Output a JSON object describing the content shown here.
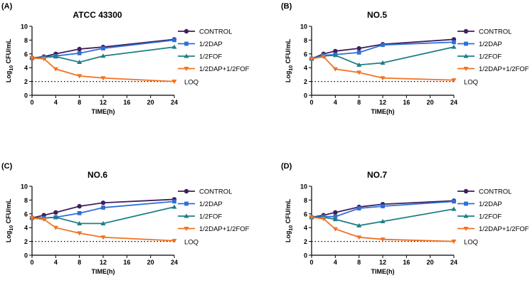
{
  "chart_data": [
    {
      "panel_label": "(A)",
      "type": "line",
      "title": "ATCC 43300",
      "xlabel": "TIME(h)",
      "ylabel_prefix": "Log",
      "ylabel_sub": "10",
      "ylabel_suffix": " CFU/mL",
      "xlim": [
        0,
        24
      ],
      "ylim": [
        0,
        10
      ],
      "xticks": [
        0,
        4,
        8,
        12,
        16,
        20,
        24
      ],
      "yticks": [
        0,
        2,
        4,
        6,
        8,
        10
      ],
      "x": [
        0,
        2,
        4,
        8,
        12,
        24
      ],
      "loq": {
        "value": 2,
        "label": "LOQ"
      },
      "series": [
        {
          "name": "CONTROL",
          "color": "#3f1f5c",
          "marker": "circle",
          "values": [
            5.4,
            5.6,
            6.0,
            6.7,
            7.0,
            8.1
          ]
        },
        {
          "name": "1/2DAP",
          "color": "#2f6ed8",
          "marker": "square",
          "values": [
            5.4,
            5.5,
            5.7,
            6.1,
            6.8,
            8.0
          ]
        },
        {
          "name": "1/2FOF",
          "color": "#1e7f86",
          "marker": "triangle-up",
          "values": [
            5.4,
            5.5,
            5.6,
            4.8,
            5.7,
            7.0
          ]
        },
        {
          "name": "1/2DAP+1/2FOF",
          "color": "#f07224",
          "marker": "triangle-down",
          "values": [
            5.4,
            5.3,
            3.8,
            2.8,
            2.5,
            2.0
          ]
        }
      ]
    },
    {
      "panel_label": "(B)",
      "type": "line",
      "title": "NO.5",
      "xlabel": "TIME(h)",
      "ylabel_prefix": "Log",
      "ylabel_sub": "10",
      "ylabel_suffix": " CFU/mL",
      "xlim": [
        0,
        24
      ],
      "ylim": [
        0,
        10
      ],
      "xticks": [
        0,
        4,
        8,
        12,
        16,
        20,
        24
      ],
      "yticks": [
        0,
        2,
        4,
        6,
        8,
        10
      ],
      "x": [
        0,
        2,
        4,
        8,
        12,
        24
      ],
      "loq": {
        "value": 2,
        "label": "LOQ"
      },
      "series": [
        {
          "name": "CONTROL",
          "color": "#3f1f5c",
          "marker": "circle",
          "values": [
            5.3,
            6.0,
            6.4,
            6.8,
            7.4,
            8.1
          ]
        },
        {
          "name": "1/2DAP",
          "color": "#2f6ed8",
          "marker": "square",
          "values": [
            5.3,
            5.8,
            5.9,
            6.2,
            7.3,
            7.7
          ]
        },
        {
          "name": "1/2FOF",
          "color": "#1e7f86",
          "marker": "triangle-up",
          "values": [
            5.3,
            5.7,
            5.8,
            4.4,
            4.7,
            7.0
          ]
        },
        {
          "name": "1/2DAP+1/2FOF",
          "color": "#f07224",
          "marker": "triangle-down",
          "values": [
            5.3,
            5.6,
            3.8,
            3.3,
            2.5,
            2.2
          ]
        }
      ]
    },
    {
      "panel_label": "(C)",
      "type": "line",
      "title": "NO.6",
      "xlabel": "TIME(h)",
      "ylabel_prefix": "Log",
      "ylabel_sub": "10",
      "ylabel_suffix": " CFU/mL",
      "xlim": [
        0,
        24
      ],
      "ylim": [
        0,
        10
      ],
      "xticks": [
        0,
        4,
        8,
        12,
        16,
        20,
        24
      ],
      "yticks": [
        0,
        2,
        4,
        6,
        8,
        10
      ],
      "x": [
        0,
        2,
        4,
        8,
        12,
        24
      ],
      "loq": {
        "value": 2,
        "label": "LOQ"
      },
      "series": [
        {
          "name": "CONTROL",
          "color": "#3f1f5c",
          "marker": "circle",
          "values": [
            5.4,
            5.8,
            6.2,
            7.1,
            7.6,
            8.1
          ]
        },
        {
          "name": "1/2DAP",
          "color": "#2f6ed8",
          "marker": "square",
          "values": [
            5.4,
            5.4,
            5.5,
            6.1,
            6.9,
            7.8
          ]
        },
        {
          "name": "1/2FOF",
          "color": "#1e7f86",
          "marker": "triangle-up",
          "values": [
            5.4,
            5.4,
            5.5,
            4.6,
            4.6,
            7.0
          ]
        },
        {
          "name": "1/2DAP+1/2FOF",
          "color": "#f07224",
          "marker": "triangle-down",
          "values": [
            5.4,
            5.2,
            4.0,
            3.2,
            2.6,
            2.1
          ]
        }
      ]
    },
    {
      "panel_label": "(D)",
      "type": "line",
      "title": "NO.7",
      "xlabel": "TIME(h)",
      "ylabel_prefix": "Log",
      "ylabel_sub": "10",
      "ylabel_suffix": " CFU/mL",
      "xlim": [
        0,
        24
      ],
      "ylim": [
        0,
        10
      ],
      "xticks": [
        0,
        4,
        8,
        12,
        16,
        20,
        24
      ],
      "yticks": [
        0,
        2,
        4,
        6,
        8,
        10
      ],
      "x": [
        0,
        2,
        4,
        8,
        12,
        24
      ],
      "loq": {
        "value": 2,
        "label": "LOQ"
      },
      "series": [
        {
          "name": "CONTROL",
          "color": "#3f1f5c",
          "marker": "circle",
          "values": [
            5.5,
            5.8,
            6.2,
            7.0,
            7.4,
            7.9
          ]
        },
        {
          "name": "1/2DAP",
          "color": "#2f6ed8",
          "marker": "square",
          "values": [
            5.5,
            5.6,
            5.6,
            6.8,
            7.1,
            7.8
          ]
        },
        {
          "name": "1/2FOF",
          "color": "#1e7f86",
          "marker": "triangle-up",
          "values": [
            5.5,
            5.5,
            5.2,
            4.3,
            4.9,
            6.7
          ]
        },
        {
          "name": "1/2DAP+1/2FOF",
          "color": "#f07224",
          "marker": "triangle-down",
          "values": [
            5.5,
            5.3,
            3.8,
            2.6,
            2.3,
            2.0
          ]
        }
      ]
    }
  ]
}
